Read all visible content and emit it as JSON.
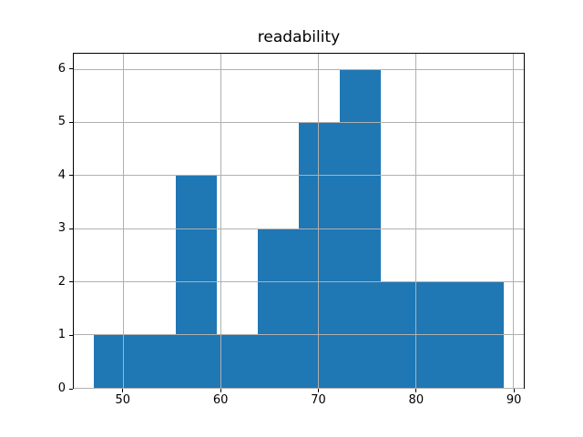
{
  "chart_data": {
    "type": "bar",
    "subtype": "histogram",
    "title": "readability",
    "xlabel": "",
    "ylabel": "",
    "bin_edges": [
      47.0,
      51.2,
      55.4,
      59.6,
      63.8,
      68.0,
      72.2,
      76.4,
      80.6,
      84.8,
      89.0
    ],
    "counts": [
      1,
      1,
      4,
      1,
      3,
      5,
      6,
      2,
      2,
      2
    ],
    "xticks": [
      50,
      60,
      70,
      80,
      90
    ],
    "yticks": [
      0,
      1,
      2,
      3,
      4,
      5,
      6
    ],
    "xlim": [
      44.9,
      91.1
    ],
    "ylim": [
      0,
      6.3
    ],
    "grid": true,
    "legend": false,
    "colors": {
      "bar": "#1f77b4",
      "grid": "#b0b0b0",
      "spine": "#000000",
      "text": "#000000",
      "background": "#ffffff"
    }
  }
}
